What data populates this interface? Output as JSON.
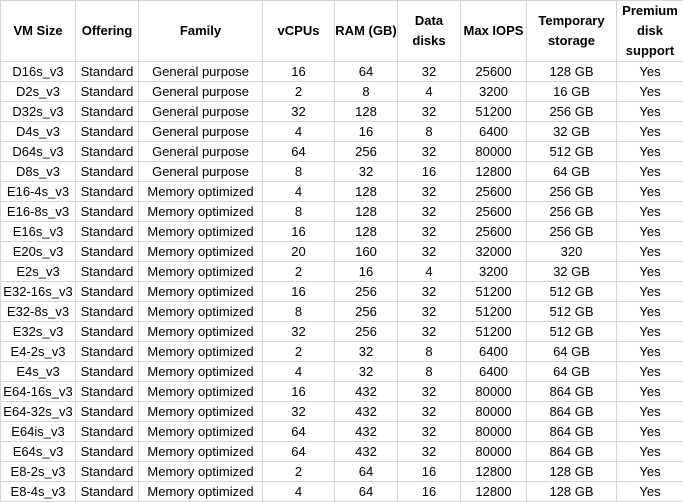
{
  "table": {
    "headers": [
      "VM Size",
      "Offering",
      "Family",
      "vCPUs",
      "RAM (GB)",
      "Data disks",
      "Max IOPS",
      "Temporary storage",
      "Premium disk support"
    ],
    "rows": [
      [
        "D16s_v3",
        "Standard",
        "General purpose",
        "16",
        "64",
        "32",
        "25600",
        "128 GB",
        "Yes"
      ],
      [
        "D2s_v3",
        "Standard",
        "General purpose",
        "2",
        "8",
        "4",
        "3200",
        "16 GB",
        "Yes"
      ],
      [
        "D32s_v3",
        "Standard",
        "General purpose",
        "32",
        "128",
        "32",
        "51200",
        "256 GB",
        "Yes"
      ],
      [
        "D4s_v3",
        "Standard",
        "General purpose",
        "4",
        "16",
        "8",
        "6400",
        "32 GB",
        "Yes"
      ],
      [
        "D64s_v3",
        "Standard",
        "General purpose",
        "64",
        "256",
        "32",
        "80000",
        "512 GB",
        "Yes"
      ],
      [
        "D8s_v3",
        "Standard",
        "General purpose",
        "8",
        "32",
        "16",
        "12800",
        "64 GB",
        "Yes"
      ],
      [
        "E16-4s_v3",
        "Standard",
        "Memory optimized",
        "4",
        "128",
        "32",
        "25600",
        "256 GB",
        "Yes"
      ],
      [
        "E16-8s_v3",
        "Standard",
        "Memory optimized",
        "8",
        "128",
        "32",
        "25600",
        "256 GB",
        "Yes"
      ],
      [
        "E16s_v3",
        "Standard",
        "Memory optimized",
        "16",
        "128",
        "32",
        "25600",
        "256 GB",
        "Yes"
      ],
      [
        "E20s_v3",
        "Standard",
        "Memory optimized",
        "20",
        "160",
        "32",
        "32000",
        "320",
        "Yes"
      ],
      [
        "E2s_v3",
        "Standard",
        "Memory optimized",
        "2",
        "16",
        "4",
        "3200",
        "32 GB",
        "Yes"
      ],
      [
        "E32-16s_v3",
        "Standard",
        "Memory optimized",
        "16",
        "256",
        "32",
        "51200",
        "512 GB",
        "Yes"
      ],
      [
        "E32-8s_v3",
        "Standard",
        "Memory optimized",
        "8",
        "256",
        "32",
        "51200",
        "512 GB",
        "Yes"
      ],
      [
        "E32s_v3",
        "Standard",
        "Memory optimized",
        "32",
        "256",
        "32",
        "51200",
        "512 GB",
        "Yes"
      ],
      [
        "E4-2s_v3",
        "Standard",
        "Memory optimized",
        "2",
        "32",
        "8",
        "6400",
        "64 GB",
        "Yes"
      ],
      [
        "E4s_v3",
        "Standard",
        "Memory optimized",
        "4",
        "32",
        "8",
        "6400",
        "64 GB",
        "Yes"
      ],
      [
        "E64-16s_v3",
        "Standard",
        "Memory optimized",
        "16",
        "432",
        "32",
        "80000",
        "864 GB",
        "Yes"
      ],
      [
        "E64-32s_v3",
        "Standard",
        "Memory optimized",
        "32",
        "432",
        "32",
        "80000",
        "864 GB",
        "Yes"
      ],
      [
        "E64is_v3",
        "Standard",
        "Memory optimized",
        "64",
        "432",
        "32",
        "80000",
        "864 GB",
        "Yes"
      ],
      [
        "E64s_v3",
        "Standard",
        "Memory optimized",
        "64",
        "432",
        "32",
        "80000",
        "864 GB",
        "Yes"
      ],
      [
        "E8-2s_v3",
        "Standard",
        "Memory optimized",
        "2",
        "64",
        "16",
        "12800",
        "128 GB",
        "Yes"
      ],
      [
        "E8-4s_v3",
        "Standard",
        "Memory optimized",
        "4",
        "64",
        "16",
        "12800",
        "128 GB",
        "Yes"
      ]
    ]
  }
}
